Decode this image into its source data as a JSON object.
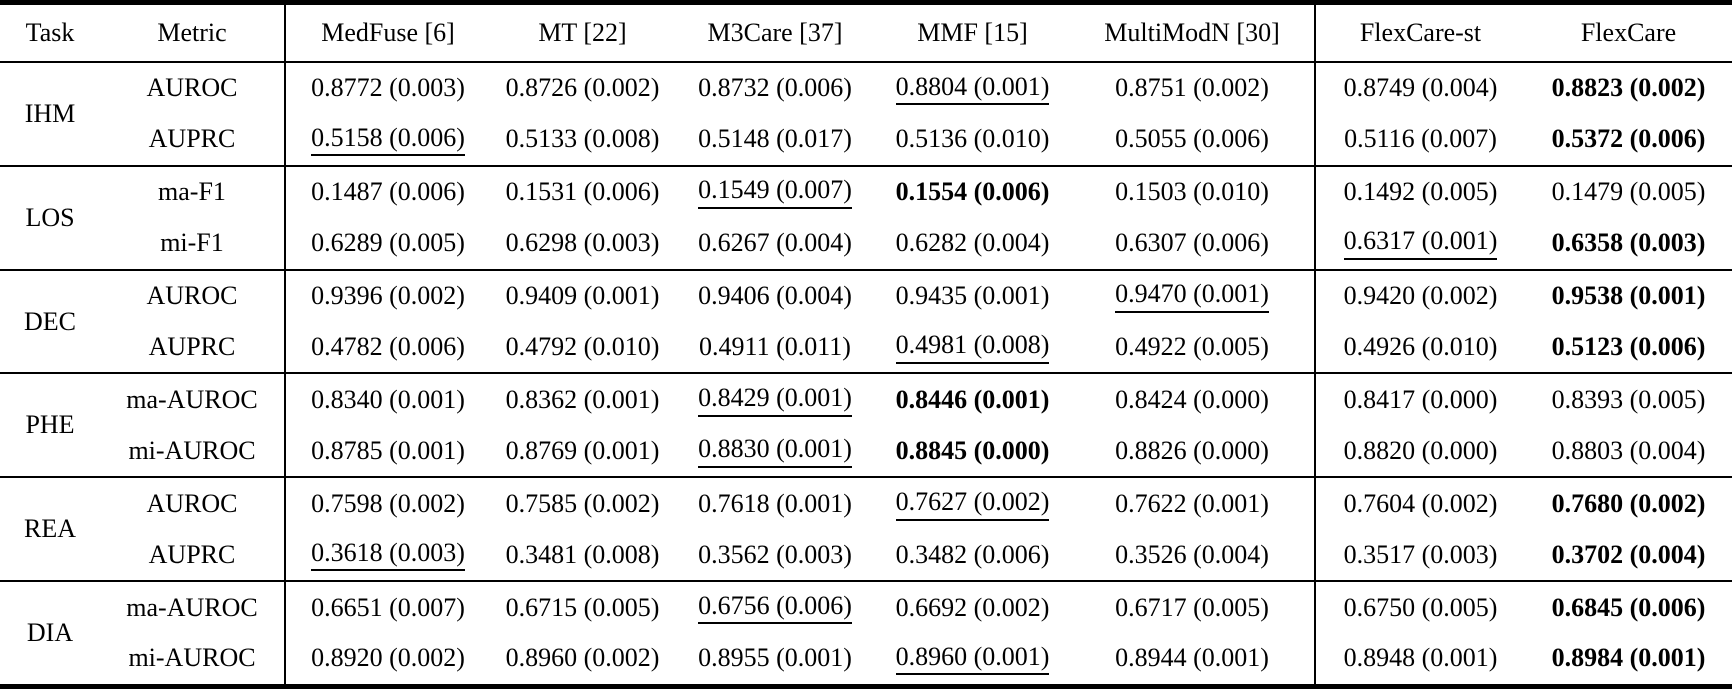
{
  "table": {
    "headers": [
      "Task",
      "Metric",
      "MedFuse [6]",
      "MT [22]",
      "M3Care [37]",
      "MMF [15]",
      "MultiModN [30]",
      "FlexCare-st",
      "FlexCare"
    ],
    "groups": [
      {
        "task": "IHM",
        "rows": [
          {
            "metric": "AUROC",
            "values": [
              {
                "text": "0.8772 (0.003)"
              },
              {
                "text": "0.8726 (0.002)"
              },
              {
                "text": "0.8732 (0.006)"
              },
              {
                "text": "0.8804 (0.001)",
                "underline": true
              },
              {
                "text": "0.8751 (0.002)"
              },
              {
                "text": "0.8749 (0.004)"
              },
              {
                "text": "0.8823 (0.002)",
                "bold": true
              }
            ]
          },
          {
            "metric": "AUPRC",
            "values": [
              {
                "text": "0.5158 (0.006)",
                "underline": true
              },
              {
                "text": "0.5133 (0.008)"
              },
              {
                "text": "0.5148 (0.017)"
              },
              {
                "text": "0.5136 (0.010)"
              },
              {
                "text": "0.5055 (0.006)"
              },
              {
                "text": "0.5116 (0.007)"
              },
              {
                "text": "0.5372 (0.006)",
                "bold": true
              }
            ]
          }
        ]
      },
      {
        "task": "LOS",
        "rows": [
          {
            "metric": "ma-F1",
            "values": [
              {
                "text": "0.1487 (0.006)"
              },
              {
                "text": "0.1531 (0.006)"
              },
              {
                "text": "0.1549 (0.007)",
                "underline": true
              },
              {
                "text": "0.1554 (0.006)",
                "bold": true
              },
              {
                "text": "0.1503 (0.010)"
              },
              {
                "text": "0.1492 (0.005)"
              },
              {
                "text": "0.1479 (0.005)"
              }
            ]
          },
          {
            "metric": "mi-F1",
            "values": [
              {
                "text": "0.6289 (0.005)"
              },
              {
                "text": "0.6298 (0.003)"
              },
              {
                "text": "0.6267 (0.004)"
              },
              {
                "text": "0.6282 (0.004)"
              },
              {
                "text": "0.6307 (0.006)"
              },
              {
                "text": "0.6317 (0.001)",
                "underline": true
              },
              {
                "text": "0.6358 (0.003)",
                "bold": true
              }
            ]
          }
        ]
      },
      {
        "task": "DEC",
        "rows": [
          {
            "metric": "AUROC",
            "values": [
              {
                "text": "0.9396 (0.002)"
              },
              {
                "text": "0.9409 (0.001)"
              },
              {
                "text": "0.9406 (0.004)"
              },
              {
                "text": "0.9435 (0.001)"
              },
              {
                "text": "0.9470 (0.001)",
                "underline": true
              },
              {
                "text": "0.9420 (0.002)"
              },
              {
                "text": "0.9538 (0.001)",
                "bold": true
              }
            ]
          },
          {
            "metric": "AUPRC",
            "values": [
              {
                "text": "0.4782 (0.006)"
              },
              {
                "text": "0.4792 (0.010)"
              },
              {
                "text": "0.4911 (0.011)"
              },
              {
                "text": "0.4981 (0.008)",
                "underline": true
              },
              {
                "text": "0.4922 (0.005)"
              },
              {
                "text": "0.4926 (0.010)"
              },
              {
                "text": "0.5123 (0.006)",
                "bold": true
              }
            ]
          }
        ]
      },
      {
        "task": "PHE",
        "rows": [
          {
            "metric": "ma-AUROC",
            "values": [
              {
                "text": "0.8340 (0.001)"
              },
              {
                "text": "0.8362 (0.001)"
              },
              {
                "text": "0.8429 (0.001)",
                "underline": true
              },
              {
                "text": "0.8446 (0.001)",
                "bold": true
              },
              {
                "text": "0.8424 (0.000)"
              },
              {
                "text": "0.8417 (0.000)"
              },
              {
                "text": "0.8393 (0.005)"
              }
            ]
          },
          {
            "metric": "mi-AUROC",
            "values": [
              {
                "text": "0.8785 (0.001)"
              },
              {
                "text": "0.8769 (0.001)"
              },
              {
                "text": "0.8830 (0.001)",
                "underline": true
              },
              {
                "text": "0.8845 (0.000)",
                "bold": true
              },
              {
                "text": "0.8826 (0.000)"
              },
              {
                "text": "0.8820 (0.000)"
              },
              {
                "text": "0.8803 (0.004)"
              }
            ]
          }
        ]
      },
      {
        "task": "REA",
        "rows": [
          {
            "metric": "AUROC",
            "values": [
              {
                "text": "0.7598 (0.002)"
              },
              {
                "text": "0.7585 (0.002)"
              },
              {
                "text": "0.7618 (0.001)"
              },
              {
                "text": "0.7627 (0.002)",
                "underline": true
              },
              {
                "text": "0.7622 (0.001)"
              },
              {
                "text": "0.7604 (0.002)"
              },
              {
                "text": "0.7680 (0.002)",
                "bold": true
              }
            ]
          },
          {
            "metric": "AUPRC",
            "values": [
              {
                "text": "0.3618 (0.003)",
                "underline": true
              },
              {
                "text": "0.3481 (0.008)"
              },
              {
                "text": "0.3562 (0.003)"
              },
              {
                "text": "0.3482 (0.006)"
              },
              {
                "text": "0.3526 (0.004)"
              },
              {
                "text": "0.3517 (0.003)"
              },
              {
                "text": "0.3702 (0.004)",
                "bold": true
              }
            ]
          }
        ]
      },
      {
        "task": "DIA",
        "rows": [
          {
            "metric": "ma-AUROC",
            "values": [
              {
                "text": "0.6651 (0.007)"
              },
              {
                "text": "0.6715 (0.005)"
              },
              {
                "text": "0.6756 (0.006)",
                "underline": true
              },
              {
                "text": "0.6692 (0.002)"
              },
              {
                "text": "0.6717 (0.005)"
              },
              {
                "text": "0.6750 (0.005)"
              },
              {
                "text": "0.6845 (0.006)",
                "bold": true
              }
            ]
          },
          {
            "metric": "mi-AUROC",
            "values": [
              {
                "text": "0.8920 (0.002)"
              },
              {
                "text": "0.8960 (0.002)"
              },
              {
                "text": "0.8955 (0.001)"
              },
              {
                "text": "0.8960 (0.001)",
                "underline": true
              },
              {
                "text": "0.8944 (0.001)"
              },
              {
                "text": "0.8948 (0.001)"
              },
              {
                "text": "0.8984 (0.001)",
                "bold": true
              }
            ]
          }
        ]
      }
    ]
  }
}
